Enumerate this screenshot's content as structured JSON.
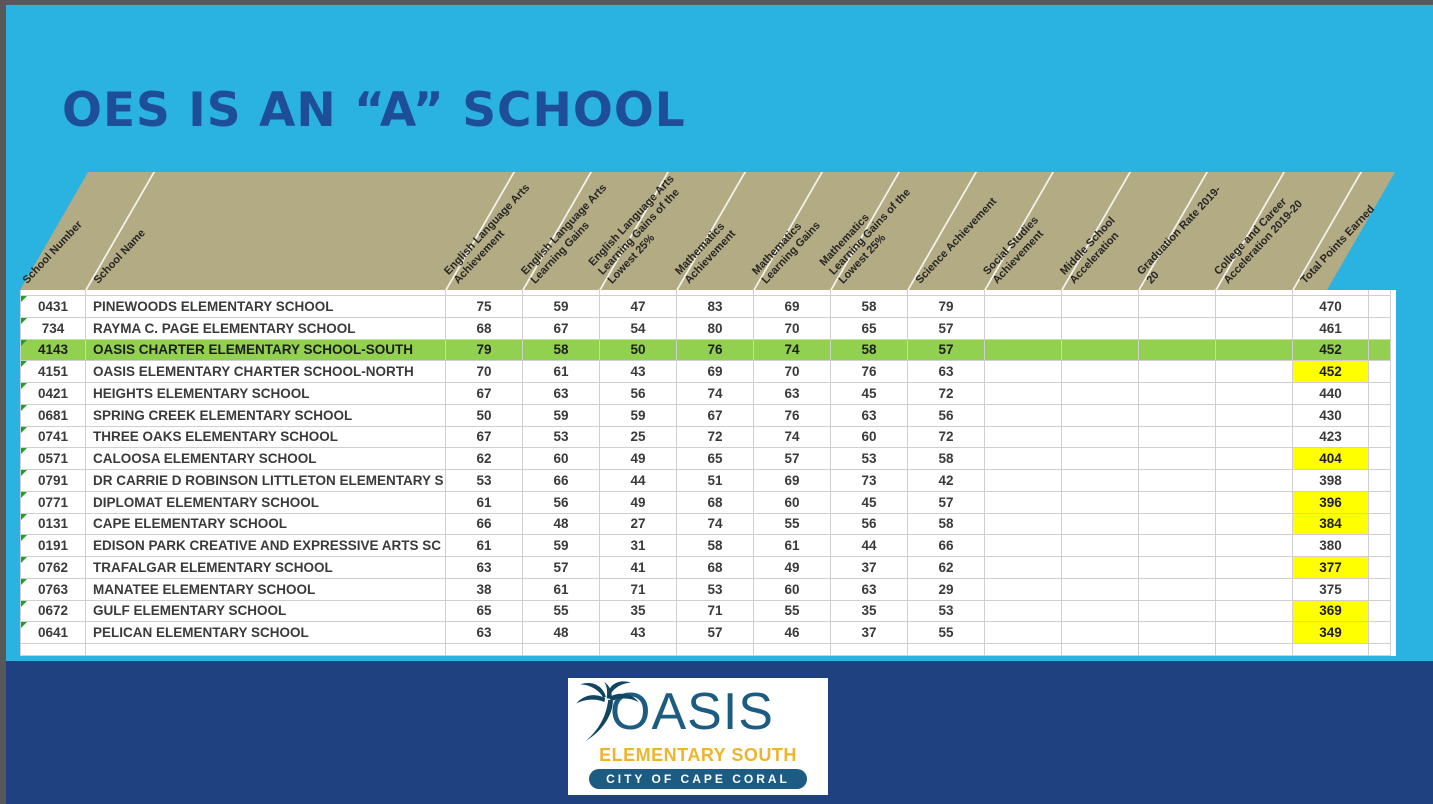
{
  "title": "OES is an “A” School",
  "colors": {
    "bg": "#2ab2e0",
    "band": "#20417f",
    "headerBg": "#b3ab84",
    "rowHl": "#92d050",
    "totHl": "#ffff00",
    "title": "#1f4e99",
    "logoBlue": "#1d5c82",
    "logoGold": "#efb42d"
  },
  "table": {
    "headers": [
      {
        "id": "school-number",
        "lines": [
          "School Number"
        ]
      },
      {
        "id": "school-name",
        "lines": [
          "School Name"
        ]
      },
      {
        "id": "ela-achievement",
        "lines": [
          "English Language Arts",
          "Achievement"
        ]
      },
      {
        "id": "ela-learning-gains",
        "lines": [
          "English Language Arts",
          "Learning Gains"
        ]
      },
      {
        "id": "ela-gains-lowest-25",
        "lines": [
          "English Language Arts",
          "Learning Gains of the",
          "Lowest 25%"
        ]
      },
      {
        "id": "math-achievement",
        "lines": [
          "Mathematics",
          "Achievement"
        ]
      },
      {
        "id": "math-learning-gains",
        "lines": [
          "Mathematics",
          "Learning Gains"
        ]
      },
      {
        "id": "math-gains-lowest-25",
        "lines": [
          "Mathematics",
          "Learning Gains of the",
          "Lowest 25%"
        ]
      },
      {
        "id": "science-achievement",
        "lines": [
          "Science Achievement"
        ]
      },
      {
        "id": "social-studies",
        "lines": [
          "Social Studies",
          "Achievement"
        ]
      },
      {
        "id": "middle-school-accel",
        "lines": [
          "Middle School",
          "Acceleration"
        ]
      },
      {
        "id": "graduation-rate",
        "lines": [
          "Graduation Rate 2019-",
          "20"
        ]
      },
      {
        "id": "college-career-accel",
        "lines": [
          "College and Career",
          "Acceleration 2019-20"
        ]
      },
      {
        "id": "total-points",
        "lines": [
          "Total Points Earned"
        ]
      }
    ],
    "rows": [
      {
        "number": "0431",
        "name": "PINEWOODS ELEMENTARY SCHOOL",
        "scores": [
          "75",
          "59",
          "47",
          "83",
          "69",
          "58",
          "79"
        ],
        "total": "470",
        "row_highlight": false,
        "total_highlight": false
      },
      {
        "number": "734",
        "name": "RAYMA C. PAGE ELEMENTARY SCHOOL",
        "scores": [
          "68",
          "67",
          "54",
          "80",
          "70",
          "65",
          "57"
        ],
        "total": "461",
        "row_highlight": false,
        "total_highlight": false
      },
      {
        "number": "4143",
        "name": "OASIS CHARTER ELEMENTARY SCHOOL-SOUTH",
        "scores": [
          "79",
          "58",
          "50",
          "76",
          "74",
          "58",
          "57"
        ],
        "total": "452",
        "row_highlight": true,
        "total_highlight": false
      },
      {
        "number": "4151",
        "name": "OASIS ELEMENTARY CHARTER SCHOOL-NORTH",
        "scores": [
          "70",
          "61",
          "43",
          "69",
          "70",
          "76",
          "63"
        ],
        "total": "452",
        "row_highlight": false,
        "total_highlight": true
      },
      {
        "number": "0421",
        "name": "HEIGHTS ELEMENTARY SCHOOL",
        "scores": [
          "67",
          "63",
          "56",
          "74",
          "63",
          "45",
          "72"
        ],
        "total": "440",
        "row_highlight": false,
        "total_highlight": false
      },
      {
        "number": "0681",
        "name": "SPRING CREEK ELEMENTARY SCHOOL",
        "scores": [
          "50",
          "59",
          "59",
          "67",
          "76",
          "63",
          "56"
        ],
        "total": "430",
        "row_highlight": false,
        "total_highlight": false
      },
      {
        "number": "0741",
        "name": "THREE OAKS ELEMENTARY SCHOOL",
        "scores": [
          "67",
          "53",
          "25",
          "72",
          "74",
          "60",
          "72"
        ],
        "total": "423",
        "row_highlight": false,
        "total_highlight": false
      },
      {
        "number": "0571",
        "name": "CALOOSA ELEMENTARY SCHOOL",
        "scores": [
          "62",
          "60",
          "49",
          "65",
          "57",
          "53",
          "58"
        ],
        "total": "404",
        "row_highlight": false,
        "total_highlight": true
      },
      {
        "number": "0791",
        "name": "DR CARRIE D ROBINSON LITTLETON ELEMENTARY S",
        "scores": [
          "53",
          "66",
          "44",
          "51",
          "69",
          "73",
          "42"
        ],
        "total": "398",
        "row_highlight": false,
        "total_highlight": false
      },
      {
        "number": "0771",
        "name": "DIPLOMAT ELEMENTARY SCHOOL",
        "scores": [
          "61",
          "56",
          "49",
          "68",
          "60",
          "45",
          "57"
        ],
        "total": "396",
        "row_highlight": false,
        "total_highlight": true
      },
      {
        "number": "0131",
        "name": "CAPE ELEMENTARY SCHOOL",
        "scores": [
          "66",
          "48",
          "27",
          "74",
          "55",
          "56",
          "58"
        ],
        "total": "384",
        "row_highlight": false,
        "total_highlight": true
      },
      {
        "number": "0191",
        "name": "EDISON PARK CREATIVE AND EXPRESSIVE ARTS SC",
        "scores": [
          "61",
          "59",
          "31",
          "58",
          "61",
          "44",
          "66"
        ],
        "total": "380",
        "row_highlight": false,
        "total_highlight": false
      },
      {
        "number": "0762",
        "name": "TRAFALGAR ELEMENTARY SCHOOL",
        "scores": [
          "63",
          "57",
          "41",
          "68",
          "49",
          "37",
          "62"
        ],
        "total": "377",
        "row_highlight": false,
        "total_highlight": true
      },
      {
        "number": "0763",
        "name": "MANATEE ELEMENTARY SCHOOL",
        "scores": [
          "38",
          "61",
          "71",
          "53",
          "60",
          "63",
          "29"
        ],
        "total": "375",
        "row_highlight": false,
        "total_highlight": false
      },
      {
        "number": "0672",
        "name": "GULF ELEMENTARY SCHOOL",
        "scores": [
          "65",
          "55",
          "35",
          "71",
          "55",
          "35",
          "53"
        ],
        "total": "369",
        "row_highlight": false,
        "total_highlight": true
      },
      {
        "number": "0641",
        "name": "PELICAN ELEMENTARY SCHOOL",
        "scores": [
          "63",
          "48",
          "43",
          "57",
          "46",
          "37",
          "55"
        ],
        "total": "349",
        "row_highlight": false,
        "total_highlight": true
      }
    ]
  },
  "logo": {
    "name": "OASIS",
    "subtitle": "ELEMENTARY SOUTH",
    "city": "CITY OF CAPE CORAL"
  }
}
